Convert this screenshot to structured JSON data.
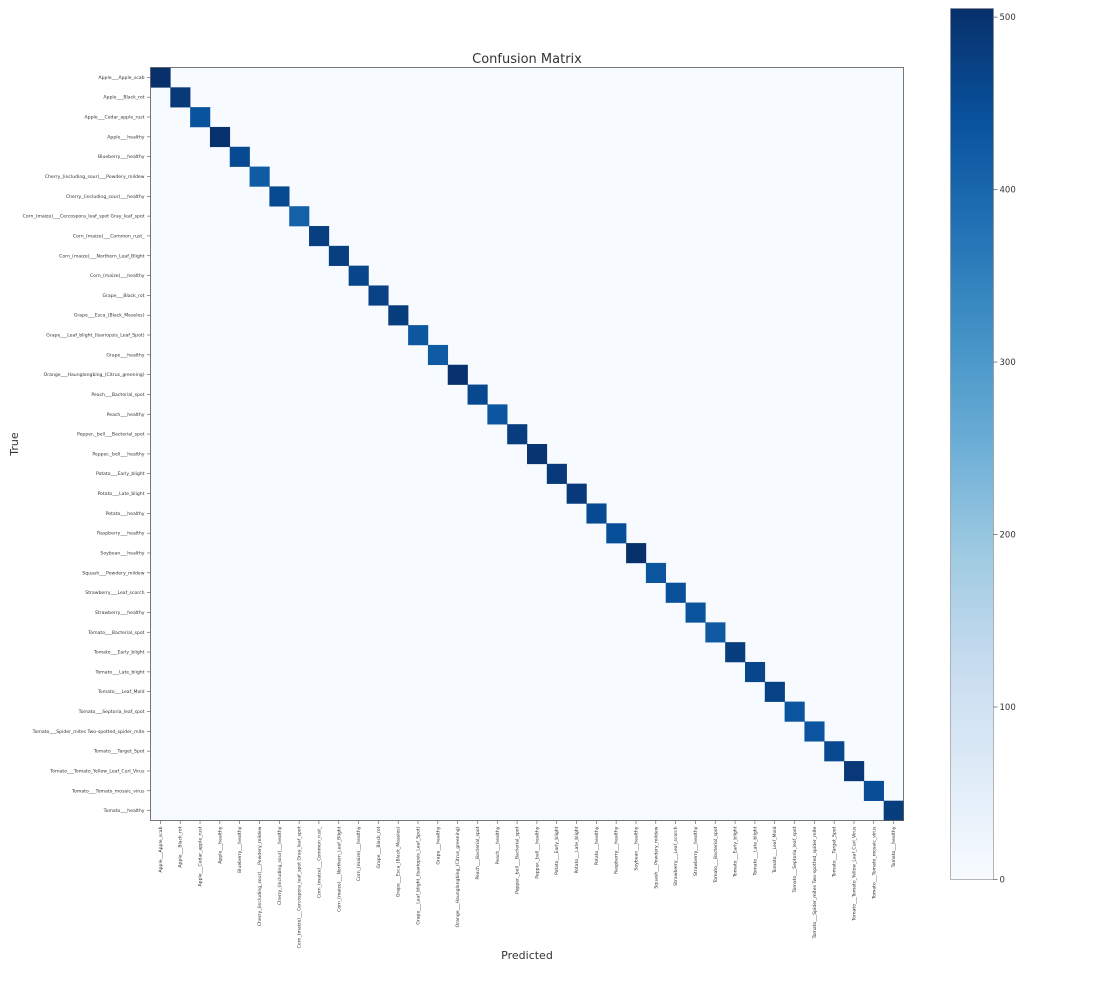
{
  "chart_data": {
    "type": "heatmap",
    "title": "Confusion Matrix",
    "xlabel": "Predicted",
    "ylabel": "True",
    "labels": [
      "Apple___Apple_scab",
      "Apple___Black_rot",
      "Apple___Cedar_apple_rust",
      "Apple___healthy",
      "Blueberry___healthy",
      "Cherry_(including_sour)___Powdery_mildew",
      "Cherry_(including_sour)___healthy",
      "Corn_(maize)___Cercospora_leaf_spot Gray_leaf_spot",
      "Corn_(maize)___Common_rust_",
      "Corn_(maize)___Northern_Leaf_Blight",
      "Corn_(maize)___healthy",
      "Grape___Black_rot",
      "Grape___Esca_(Black_Measles)",
      "Grape___Leaf_blight_(Isariopsis_Leaf_Spot)",
      "Grape___healthy",
      "Orange___Haunglongbing_(Citrus_greening)",
      "Peach___Bacterial_spot",
      "Peach___healthy",
      "Pepper,_bell___Bacterial_spot",
      "Pepper,_bell___healthy",
      "Potato___Early_blight",
      "Potato___Late_blight",
      "Potato___healthy",
      "Raspberry___healthy",
      "Soybean___healthy",
      "Squash___Powdery_mildew",
      "Strawberry___Leaf_scorch",
      "Strawberry___healthy",
      "Tomato___Bacterial_spot",
      "Tomato___Early_blight",
      "Tomato___Late_blight",
      "Tomato___Leaf_Mold",
      "Tomato___Septoria_leaf_spot",
      "Tomato___Spider_mites Two-spotted_spider_mite",
      "Tomato___Target_Spot",
      "Tomato___Tomato_Yellow_Leaf_Curl_Virus",
      "Tomato___Tomato_mosaic_virus",
      "Tomato___healthy"
    ],
    "diagonal_values": [
      505,
      486,
      440,
      502,
      455,
      421,
      456,
      410,
      477,
      477,
      465,
      472,
      480,
      430,
      423,
      503,
      459,
      432,
      478,
      497,
      485,
      485,
      456,
      445,
      505,
      434,
      444,
      436,
      425,
      481,
      463,
      470,
      435,
      435,
      457,
      490,
      448,
      481
    ],
    "off_diagonal_value": 0,
    "colorbar": {
      "min": 0,
      "max": 505,
      "ticks": [
        0,
        100,
        200,
        300,
        400,
        500
      ],
      "colormap": "Blues"
    },
    "grid": false
  }
}
